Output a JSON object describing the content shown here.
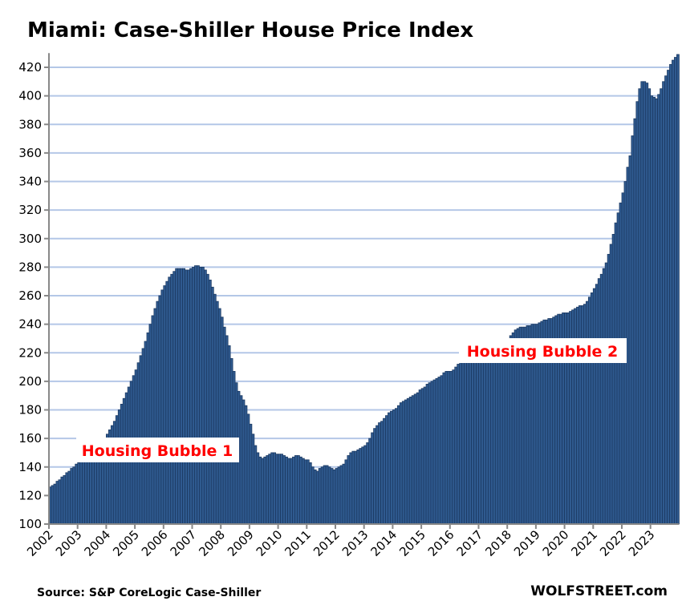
{
  "chart_data": {
    "type": "bar",
    "title": "Miami: Case-Shiller House Price Index",
    "xlabel": "",
    "ylabel": "",
    "frequency": "monthly",
    "start": "2002-01",
    "ylim": [
      100,
      430
    ],
    "yticks": [
      100,
      120,
      140,
      160,
      180,
      200,
      220,
      240,
      260,
      280,
      300,
      320,
      340,
      360,
      380,
      400,
      420
    ],
    "xticks": [
      "2002",
      "2003",
      "2004",
      "2005",
      "2006",
      "2007",
      "2008",
      "2009",
      "2010",
      "2011",
      "2012",
      "2013",
      "2014",
      "2015",
      "2016",
      "2017",
      "2018",
      "2019",
      "2020",
      "2021",
      "2022",
      "2023"
    ],
    "grid": true,
    "values": [
      126,
      127,
      128,
      130,
      131,
      133,
      134,
      136,
      137,
      139,
      140,
      142,
      143,
      144,
      145,
      146,
      147,
      148,
      150,
      152,
      154,
      156,
      158,
      160,
      163,
      166,
      169,
      172,
      176,
      180,
      184,
      188,
      192,
      196,
      200,
      204,
      208,
      213,
      218,
      223,
      228,
      234,
      240,
      246,
      251,
      256,
      260,
      264,
      267,
      270,
      273,
      275,
      277,
      279,
      279,
      279,
      279,
      278,
      278,
      279,
      280,
      281,
      281,
      280,
      280,
      278,
      275,
      271,
      266,
      261,
      256,
      251,
      245,
      238,
      232,
      225,
      216,
      207,
      199,
      193,
      190,
      187,
      183,
      177,
      170,
      163,
      155,
      150,
      147,
      146,
      147,
      148,
      149,
      150,
      150,
      149,
      149,
      149,
      148,
      147,
      146,
      146,
      147,
      148,
      148,
      147,
      146,
      145,
      145,
      143,
      140,
      138,
      137,
      139,
      140,
      141,
      141,
      140,
      139,
      138,
      139,
      140,
      141,
      142,
      145,
      148,
      150,
      151,
      151,
      152,
      153,
      154,
      155,
      157,
      160,
      164,
      167,
      169,
      171,
      172,
      174,
      176,
      178,
      179,
      180,
      181,
      183,
      185,
      186,
      187,
      188,
      189,
      190,
      191,
      192,
      194,
      195,
      196,
      198,
      199,
      200,
      201,
      202,
      203,
      204,
      206,
      207,
      207,
      207,
      208,
      210,
      212,
      213,
      214,
      214,
      215,
      215,
      216,
      216,
      217,
      218,
      219,
      220,
      221,
      222,
      223,
      224,
      225,
      226,
      226,
      227,
      228,
      230,
      232,
      234,
      236,
      237,
      238,
      238,
      238,
      239,
      239,
      240,
      240,
      240,
      241,
      242,
      243,
      243,
      244,
      244,
      245,
      246,
      247,
      247,
      248,
      248,
      248,
      249,
      250,
      251,
      252,
      253,
      253,
      254,
      256,
      259,
      262,
      265,
      268,
      272,
      275,
      279,
      283,
      289,
      296,
      303,
      311,
      318,
      325,
      332,
      340,
      350,
      358,
      372,
      384,
      396,
      405,
      410,
      410,
      409,
      405,
      400,
      399,
      398,
      401,
      405,
      410,
      414,
      418,
      422,
      425,
      427,
      429
    ],
    "annotations": [
      "Housing Bubble 1",
      "Housing Bubble 2"
    ],
    "source": "Source: S&P CoreLogic Case-Shiller",
    "brand": "WOLFSTREET.com",
    "colors": {
      "bar": "#2f5a8f",
      "bar_edge": "#1c3a63",
      "grid": "#b4c7e7",
      "annotation": "#ff0000"
    }
  }
}
